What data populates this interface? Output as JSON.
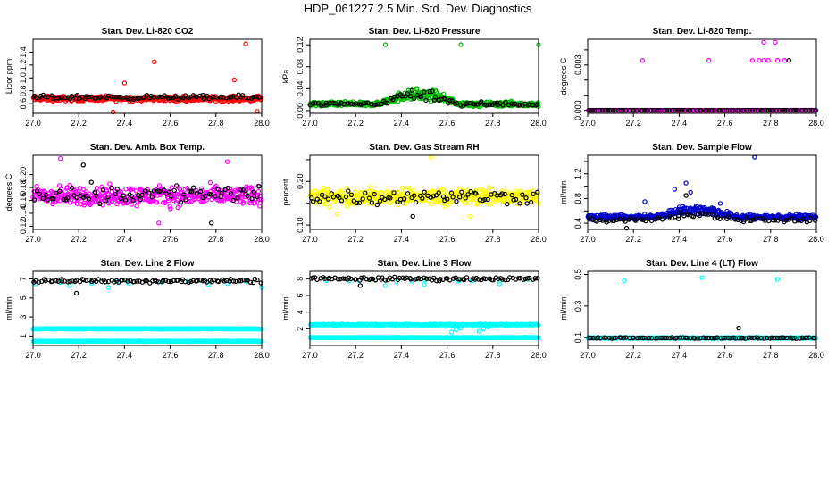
{
  "figure": {
    "title": "HDP_061227  2.5 Min. Std. Dev. Diagnostics"
  },
  "chart_data": [
    {
      "type": "scatter",
      "title": "Stan. Dev. Li-820 CO2",
      "ylabel": "Licor ppm",
      "xlim": [
        27.0,
        28.0
      ],
      "ylim": [
        0.45,
        1.6
      ],
      "xticks": [
        "27.0",
        "27.2",
        "27.4",
        "27.6",
        "27.8",
        "28.0"
      ],
      "yticks": [
        0.6,
        0.8,
        1.0,
        1.2,
        1.4
      ],
      "ytick_labels": [
        "0.6",
        "0.8",
        "1.0",
        "1.2",
        "1.4"
      ],
      "series": [
        {
          "name": "main",
          "color": "#ff0000",
          "n": 460,
          "base": 0.68,
          "spread": 0.055,
          "wave": 0.0,
          "extremes": [
            [
              27.53,
              1.25
            ],
            [
              27.93,
              1.53
            ],
            [
              27.88,
              0.97
            ],
            [
              27.35,
              0.47
            ],
            [
              27.98,
              0.48
            ],
            [
              27.4,
              0.92
            ]
          ]
        },
        {
          "name": "overlay",
          "color": "#000000",
          "n": 95,
          "base": 0.7,
          "spread": 0.045,
          "wave": 0.0,
          "extremes": []
        }
      ]
    },
    {
      "type": "scatter",
      "title": "Stan. Dev. Li-820 Pressure",
      "ylabel": "kPa",
      "xlim": [
        27.0,
        28.0
      ],
      "ylim": [
        -0.005,
        0.13
      ],
      "xticks": [
        "27.0",
        "27.2",
        "27.4",
        "27.6",
        "27.8",
        "28.0"
      ],
      "yticks": [
        0.0,
        0.04,
        0.08,
        0.12
      ],
      "ytick_labels": [
        "0.00",
        "0.04",
        "0.08",
        "0.12"
      ],
      "series": [
        {
          "name": "main",
          "color": "#00bb00",
          "n": 460,
          "base": 0.012,
          "spread": 0.006,
          "wave": 0.018,
          "extremes": [
            [
              27.33,
              0.12
            ],
            [
              27.66,
              0.12
            ],
            [
              28.0,
              0.12
            ]
          ]
        },
        {
          "name": "overlay",
          "color": "#000000",
          "n": 95,
          "base": 0.012,
          "spread": 0.006,
          "wave": 0.018,
          "extremes": []
        }
      ]
    },
    {
      "type": "scatter",
      "title": "Stan. Dev. Li-820 Temp.",
      "ylabel": "degrees C",
      "xlim": [
        27.0,
        28.0
      ],
      "ylim": [
        -0.0002,
        0.0047
      ],
      "xticks": [
        "27.0",
        "27.2",
        "27.4",
        "27.6",
        "27.8",
        "28.0"
      ],
      "yticks": [
        0.0,
        0.001,
        0.002,
        0.003,
        0.004
      ],
      "ytick_labels": [
        "0.000",
        "",
        "",
        "0.003",
        ""
      ],
      "series": [
        {
          "name": "main",
          "color": "#ff00ff",
          "n": 200,
          "base": 0.0,
          "spread": 0.0,
          "wave": 0.0,
          "extremes": [
            [
              27.24,
              0.0033
            ],
            [
              27.53,
              0.0033
            ],
            [
              27.72,
              0.0033
            ],
            [
              27.75,
              0.0033
            ],
            [
              27.77,
              0.0033
            ],
            [
              27.79,
              0.0033
            ],
            [
              27.83,
              0.0033
            ],
            [
              27.86,
              0.0033
            ],
            [
              27.77,
              0.0045
            ],
            [
              27.82,
              0.0045
            ]
          ]
        },
        {
          "name": "overlay",
          "color": "#000000",
          "n": 85,
          "base": 0.0,
          "spread": 0.0,
          "wave": 0.0,
          "extremes": [
            [
              27.88,
              0.0033
            ]
          ]
        }
      ]
    },
    {
      "type": "scatter",
      "title": "Stan. Dev. Amb. Box Temp.",
      "ylabel": "degrees C",
      "xlim": [
        27.0,
        28.0
      ],
      "ylim": [
        0.115,
        0.23
      ],
      "xticks": [
        "27.0",
        "27.2",
        "27.4",
        "27.6",
        "27.8",
        "28.0"
      ],
      "yticks": [
        0.12,
        0.14,
        0.16,
        0.18,
        0.2
      ],
      "ytick_labels": [
        "0.12",
        "0.14",
        "0.16",
        "0.18",
        "0.20"
      ],
      "series": [
        {
          "name": "main",
          "color": "#ff00ff",
          "n": 420,
          "base": 0.167,
          "spread": 0.022,
          "wave": 0.0,
          "extremes": [
            [
              27.12,
              0.225
            ],
            [
              27.85,
              0.22
            ],
            [
              27.55,
              0.125
            ]
          ]
        },
        {
          "name": "overlay",
          "color": "#000000",
          "n": 80,
          "base": 0.17,
          "spread": 0.022,
          "wave": 0.0,
          "extremes": [
            [
              27.22,
              0.215
            ],
            [
              27.78,
              0.125
            ]
          ]
        }
      ]
    },
    {
      "type": "scatter",
      "title": "Stan. Dev. Gas Stream RH",
      "ylabel": "percent",
      "xlim": [
        27.0,
        28.0
      ],
      "ylim": [
        0.09,
        0.26
      ],
      "xticks": [
        "27.0",
        "27.2",
        "27.4",
        "27.6",
        "27.8",
        "28.0"
      ],
      "yticks": [
        0.1,
        0.15,
        0.2,
        0.25
      ],
      "ytick_labels": [
        "0.10",
        "",
        "0.20",
        ""
      ],
      "series": [
        {
          "name": "main",
          "color": "#ffff00",
          "n": 440,
          "base": 0.165,
          "spread": 0.026,
          "wave": 0.0,
          "extremes": [
            [
              27.53,
              0.255
            ],
            [
              27.12,
              0.125
            ],
            [
              27.7,
              0.12
            ]
          ]
        },
        {
          "name": "overlay",
          "color": "#000000",
          "n": 80,
          "base": 0.165,
          "spread": 0.025,
          "wave": 0.0,
          "extremes": [
            [
              27.45,
              0.12
            ]
          ]
        }
      ]
    },
    {
      "type": "scatter",
      "title": "Stan. Dev. Sample Flow",
      "ylabel": "ml/min",
      "xlim": [
        27.0,
        28.0
      ],
      "ylim": [
        0.3,
        1.5
      ],
      "xticks": [
        "27.0",
        "27.2",
        "27.4",
        "27.6",
        "27.8",
        "28.0"
      ],
      "yticks": [
        0.4,
        0.6,
        0.8,
        1.0,
        1.2,
        1.4
      ],
      "ytick_labels": [
        "0.4",
        "",
        "0.8",
        "",
        "1.2",
        ""
      ],
      "series": [
        {
          "name": "main",
          "color": "#0000cc",
          "n": 440,
          "base": 0.5,
          "spread": 0.06,
          "wave": 0.12,
          "extremes": [
            [
              27.73,
              1.47
            ],
            [
              27.43,
              1.05
            ],
            [
              27.38,
              0.95
            ],
            [
              27.45,
              0.9
            ],
            [
              27.25,
              0.75
            ],
            [
              27.58,
              0.72
            ]
          ]
        },
        {
          "name": "overlay",
          "color": "#000000",
          "n": 80,
          "base": 0.45,
          "spread": 0.05,
          "wave": 0.08,
          "extremes": [
            [
              27.43,
              0.85
            ],
            [
              27.17,
              0.32
            ]
          ]
        }
      ]
    },
    {
      "type": "scatter",
      "title": "Stan. Dev. Line 2 Flow",
      "ylabel": "ml/min",
      "xlim": [
        27.0,
        28.0
      ],
      "ylim": [
        0.0,
        7.8
      ],
      "xticks": [
        "27.0",
        "27.2",
        "27.4",
        "27.6",
        "27.8",
        "28.0"
      ],
      "yticks": [
        1,
        3,
        5,
        7
      ],
      "ytick_labels": [
        "1",
        "3",
        "5",
        "7"
      ],
      "series": [
        {
          "name": "band-upper",
          "color": "#00ffff",
          "n": 380,
          "base": 1.75,
          "spread": 0.06,
          "wave": 0.0,
          "extremes": []
        },
        {
          "name": "band-lower",
          "color": "#00ffff",
          "n": 380,
          "base": 0.45,
          "spread": 0.04,
          "wave": 0.0,
          "extremes": []
        },
        {
          "name": "top-cyan",
          "color": "#00ffff",
          "n": 10,
          "base": 6.6,
          "spread": 0.3,
          "wave": 0.0,
          "extremes": [
            [
              27.16,
              6.3
            ],
            [
              27.33,
              6.1
            ],
            [
              28.0,
              6.1
            ]
          ]
        },
        {
          "name": "overlay",
          "color": "#000000",
          "n": 95,
          "base": 6.8,
          "spread": 0.3,
          "wave": 0.0,
          "extremes": [
            [
              27.19,
              5.5
            ]
          ]
        }
      ]
    },
    {
      "type": "scatter",
      "title": "Stan. Dev. Line 3 Flow",
      "ylabel": "ml/min",
      "xlim": [
        27.0,
        28.0
      ],
      "ylim": [
        0.0,
        8.9
      ],
      "xticks": [
        "27.0",
        "27.2",
        "27.4",
        "27.6",
        "27.8",
        "28.0"
      ],
      "yticks": [
        2,
        4,
        6,
        8
      ],
      "ytick_labels": [
        "2",
        "4",
        "6",
        "8"
      ],
      "series": [
        {
          "name": "band-upper",
          "color": "#00ffff",
          "n": 380,
          "base": 2.5,
          "spread": 0.12,
          "wave": 0.0,
          "extremes": [
            [
              27.62,
              1.6
            ],
            [
              27.64,
              1.9
            ],
            [
              27.66,
              2.1
            ],
            [
              27.74,
              1.7
            ],
            [
              27.76,
              2.0
            ],
            [
              27.78,
              2.2
            ]
          ]
        },
        {
          "name": "band-lower",
          "color": "#00ffff",
          "n": 380,
          "base": 0.95,
          "spread": 0.05,
          "wave": 0.0,
          "extremes": []
        },
        {
          "name": "top-cyan",
          "color": "#00ffff",
          "n": 10,
          "base": 7.8,
          "spread": 0.3,
          "wave": 0.0,
          "extremes": [
            [
              27.33,
              7.2
            ],
            [
              27.5,
              7.3
            ],
            [
              27.83,
              7.4
            ]
          ]
        },
        {
          "name": "overlay",
          "color": "#000000",
          "n": 95,
          "base": 8.0,
          "spread": 0.3,
          "wave": 0.0,
          "extremes": [
            [
              27.22,
              7.2
            ]
          ]
        }
      ]
    },
    {
      "type": "scatter",
      "title": "Stan. Dev. Line 4 (LT) Flow",
      "ylabel": "ml/min",
      "xlim": [
        27.0,
        28.0
      ],
      "ylim": [
        0.05,
        0.52
      ],
      "xticks": [
        "27.0",
        "27.2",
        "27.4",
        "27.6",
        "27.8",
        "28.0"
      ],
      "yticks": [
        0.1,
        0.3,
        0.5
      ],
      "ytick_labels": [
        "0.1",
        "0.3",
        "0.5"
      ],
      "series": [
        {
          "name": "main",
          "color": "#00ffff",
          "n": 420,
          "base": 0.098,
          "spread": 0.005,
          "wave": 0.0,
          "extremes": [
            [
              27.16,
              0.46
            ],
            [
              27.5,
              0.48
            ],
            [
              27.83,
              0.47
            ]
          ]
        },
        {
          "name": "overlay",
          "color": "#000000",
          "n": 90,
          "base": 0.098,
          "spread": 0.005,
          "wave": 0.0,
          "extremes": [
            [
              27.66,
              0.16
            ]
          ]
        }
      ]
    }
  ]
}
